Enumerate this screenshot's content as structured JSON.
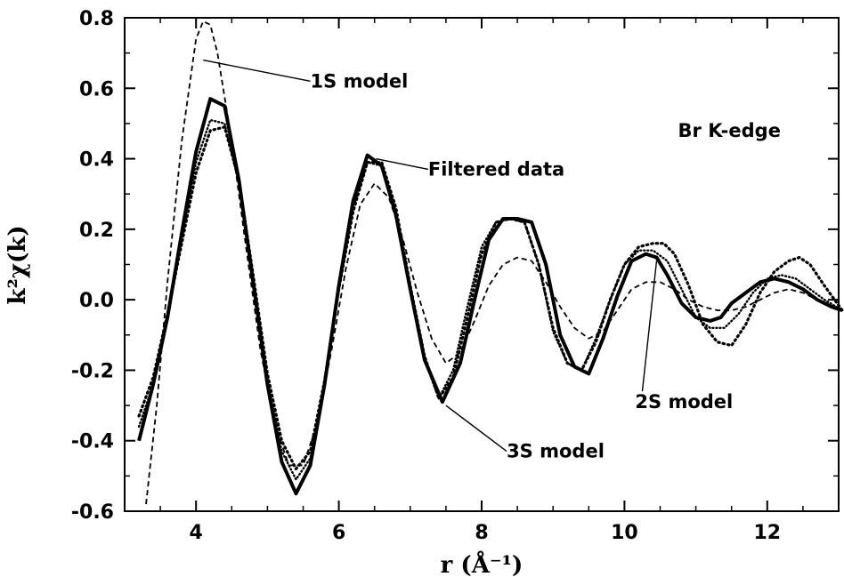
{
  "chart_data": {
    "type": "line",
    "title": "",
    "xlabel": "r (Å⁻¹)",
    "ylabel": "k²χ(k)",
    "xlim": [
      3.0,
      13.0
    ],
    "ylim": [
      -0.6,
      0.8
    ],
    "xticks": [
      4,
      6,
      8,
      10,
      12
    ],
    "xtick_labels": [
      "4",
      "6",
      "8",
      "10",
      "12"
    ],
    "yticks": [
      -0.6,
      -0.4,
      -0.2,
      0.0,
      0.2,
      0.4,
      0.6,
      0.8
    ],
    "ytick_labels": [
      "-0.6",
      "-0.4",
      "-0.2",
      "0.0",
      "0.2",
      "0.4",
      "0.6",
      "0.8"
    ],
    "grid": false,
    "legend": "none",
    "series": [
      {
        "name": "Filtered data",
        "style": "solid",
        "color": "#000000",
        "x": [
          3.2,
          3.4,
          3.6,
          3.8,
          4.0,
          4.2,
          4.4,
          4.6,
          4.8,
          5.0,
          5.2,
          5.4,
          5.6,
          5.8,
          6.0,
          6.2,
          6.4,
          6.6,
          6.8,
          7.0,
          7.2,
          7.45,
          7.7,
          7.9,
          8.1,
          8.3,
          8.5,
          8.7,
          8.9,
          9.1,
          9.3,
          9.5,
          9.7,
          9.9,
          10.1,
          10.3,
          10.45,
          10.6,
          10.8,
          11.0,
          11.2,
          11.35,
          11.5,
          11.7,
          11.9,
          12.1,
          12.3,
          12.5,
          12.7,
          12.9,
          13.05
        ],
        "y": [
          -0.4,
          -0.24,
          -0.05,
          0.19,
          0.42,
          0.57,
          0.55,
          0.34,
          0.05,
          -0.24,
          -0.46,
          -0.55,
          -0.47,
          -0.24,
          0.04,
          0.28,
          0.41,
          0.38,
          0.24,
          0.03,
          -0.17,
          -0.29,
          -0.18,
          0.0,
          0.17,
          0.23,
          0.23,
          0.22,
          0.1,
          -0.1,
          -0.19,
          -0.21,
          -0.11,
          0.01,
          0.11,
          0.13,
          0.12,
          0.07,
          -0.01,
          -0.05,
          -0.06,
          -0.05,
          -0.01,
          0.02,
          0.05,
          0.06,
          0.05,
          0.03,
          0.0,
          -0.02,
          -0.03
        ]
      },
      {
        "name": "1S model",
        "style": "dashed",
        "color": "#000000",
        "x": [
          3.3,
          3.45,
          3.6,
          3.8,
          4.0,
          4.1,
          4.2,
          4.3,
          4.5,
          4.7,
          4.9,
          5.1,
          5.3,
          5.5,
          5.7,
          5.9,
          6.1,
          6.3,
          6.5,
          6.7,
          6.9,
          7.1,
          7.3,
          7.5,
          7.7,
          7.9,
          8.1,
          8.3,
          8.5,
          8.7,
          8.9,
          9.1,
          9.3,
          9.5,
          9.7,
          9.9,
          10.1,
          10.3,
          10.5,
          10.7,
          10.9,
          11.1,
          11.3,
          11.5,
          11.7,
          11.9,
          12.1,
          12.3,
          12.5,
          12.7,
          12.9,
          13.05
        ],
        "y": [
          -0.58,
          -0.3,
          0.05,
          0.45,
          0.74,
          0.79,
          0.78,
          0.7,
          0.45,
          0.15,
          -0.14,
          -0.35,
          -0.47,
          -0.47,
          -0.35,
          -0.14,
          0.09,
          0.27,
          0.33,
          0.29,
          0.17,
          0.02,
          -0.11,
          -0.18,
          -0.15,
          -0.06,
          0.04,
          0.1,
          0.12,
          0.11,
          0.05,
          -0.02,
          -0.08,
          -0.11,
          -0.09,
          -0.03,
          0.03,
          0.05,
          0.05,
          0.03,
          0.0,
          -0.02,
          -0.03,
          -0.03,
          -0.02,
          0.0,
          0.02,
          0.03,
          0.02,
          0.0,
          -0.02,
          -0.03
        ]
      },
      {
        "name": "2S model",
        "style": "dotted",
        "color": "#000000",
        "x": [
          3.2,
          3.4,
          3.6,
          3.8,
          4.0,
          4.2,
          4.4,
          4.6,
          4.8,
          5.0,
          5.2,
          5.4,
          5.6,
          5.8,
          6.0,
          6.2,
          6.4,
          6.6,
          6.8,
          7.0,
          7.2,
          7.4,
          7.6,
          7.8,
          8.0,
          8.2,
          8.4,
          8.6,
          8.8,
          9.0,
          9.2,
          9.4,
          9.6,
          9.8,
          10.0,
          10.2,
          10.4,
          10.55,
          10.7,
          10.9,
          11.1,
          11.3,
          11.5,
          11.7,
          11.9,
          12.1,
          12.3,
          12.45,
          12.6,
          12.8,
          13.05
        ],
        "y": [
          -0.33,
          -0.22,
          -0.04,
          0.16,
          0.36,
          0.48,
          0.49,
          0.34,
          0.07,
          -0.21,
          -0.4,
          -0.48,
          -0.43,
          -0.23,
          0.03,
          0.25,
          0.39,
          0.39,
          0.26,
          0.04,
          -0.16,
          -0.28,
          -0.22,
          -0.05,
          0.13,
          0.22,
          0.23,
          0.22,
          0.1,
          -0.08,
          -0.18,
          -0.2,
          -0.12,
          0.0,
          0.1,
          0.15,
          0.16,
          0.16,
          0.13,
          0.04,
          -0.07,
          -0.12,
          -0.13,
          -0.07,
          0.02,
          0.08,
          0.11,
          0.12,
          0.1,
          0.04,
          -0.03
        ]
      },
      {
        "name": "3S model",
        "style": "dotted-dense",
        "color": "#000000",
        "x": [
          3.2,
          3.4,
          3.6,
          3.8,
          4.0,
          4.2,
          4.4,
          4.6,
          4.8,
          5.0,
          5.2,
          5.4,
          5.6,
          5.8,
          6.0,
          6.2,
          6.4,
          6.6,
          6.8,
          7.0,
          7.2,
          7.4,
          7.6,
          7.8,
          8.0,
          8.2,
          8.4,
          8.6,
          8.8,
          9.0,
          9.2,
          9.4,
          9.6,
          9.8,
          10.0,
          10.2,
          10.4,
          10.6,
          10.8,
          11.0,
          11.2,
          11.4,
          11.6,
          11.8,
          12.0,
          12.2,
          12.4,
          12.6,
          12.8,
          13.05
        ],
        "y": [
          -0.36,
          -0.24,
          -0.05,
          0.17,
          0.39,
          0.51,
          0.5,
          0.33,
          0.05,
          -0.23,
          -0.43,
          -0.51,
          -0.45,
          -0.24,
          0.03,
          0.26,
          0.39,
          0.38,
          0.24,
          0.03,
          -0.17,
          -0.28,
          -0.2,
          -0.02,
          0.15,
          0.22,
          0.23,
          0.22,
          0.1,
          -0.09,
          -0.18,
          -0.2,
          -0.11,
          0.0,
          0.1,
          0.14,
          0.14,
          0.11,
          0.03,
          -0.05,
          -0.08,
          -0.08,
          -0.04,
          0.02,
          0.06,
          0.07,
          0.06,
          0.03,
          0.0,
          -0.03
        ]
      }
    ],
    "annotations": [
      {
        "name": "1s-model",
        "text": "1S model",
        "point": [
          4.3,
          0.67
        ],
        "target": [
          4.1,
          0.68
        ],
        "label_at": [
          5.6,
          0.62
        ]
      },
      {
        "name": "filtered-data",
        "text": "Filtered data",
        "point": [
          6.5,
          0.41
        ],
        "target": [
          6.52,
          0.4
        ],
        "label_at": [
          7.25,
          0.37
        ]
      },
      {
        "name": "3s-model",
        "text": "3S model",
        "point": [
          7.45,
          -0.29
        ],
        "target": [
          7.5,
          -0.3
        ],
        "label_at": [
          8.35,
          -0.43
        ]
      },
      {
        "name": "2s-model",
        "text": "2S model",
        "point": [
          10.45,
          0.11
        ],
        "target": [
          10.42,
          0.11
        ],
        "label_at": [
          10.15,
          -0.29
        ]
      },
      {
        "name": "br-k-edge",
        "text": "Br K-edge",
        "label_at": [
          10.75,
          0.48
        ]
      }
    ]
  }
}
